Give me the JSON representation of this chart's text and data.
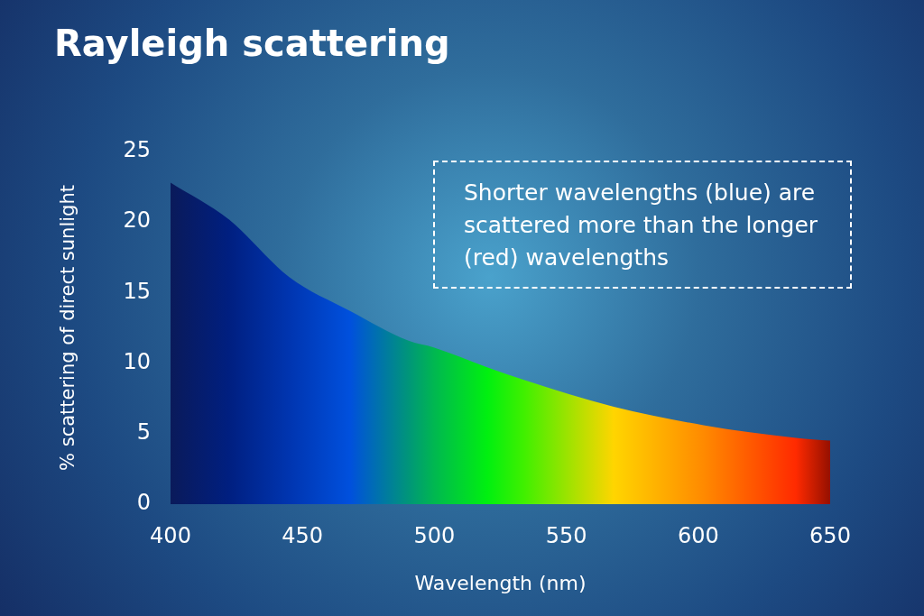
{
  "chart_data": {
    "type": "area",
    "title": "Rayleigh scattering",
    "xlabel": "Wavelength (nm)",
    "ylabel": "% scattering of direct sunlight",
    "annotations": [
      "Shorter wavelengths (blue) are scattered more than the longer (red) wavelengths"
    ],
    "xlim": [
      400,
      650
    ],
    "xticks": [
      400,
      450,
      500,
      550,
      600,
      650
    ],
    "ylim": [
      0,
      25
    ],
    "yticks": [
      0,
      5,
      10,
      15,
      20,
      25
    ],
    "grid": false,
    "legend": false,
    "marker": "none",
    "series": [
      {
        "x": [
          400,
          422,
          445,
          468,
          490,
          500,
          520,
          534,
          568,
          602,
          637,
          650
        ],
        "values": [
          22.8,
          20.2,
          16.1,
          13.7,
          11.6,
          11.1,
          9.7,
          8.8,
          6.9,
          5.6,
          4.7,
          4.5
        ],
        "colors": [
          "#0a1a5a",
          "#001f80",
          "#0035b0",
          "#0050dd",
          "#00957a",
          "#00b850",
          "#00f010",
          "#40f000",
          "#ffd500",
          "#ff8a00",
          "#ff2a00",
          "#951000"
        ]
      }
    ]
  }
}
